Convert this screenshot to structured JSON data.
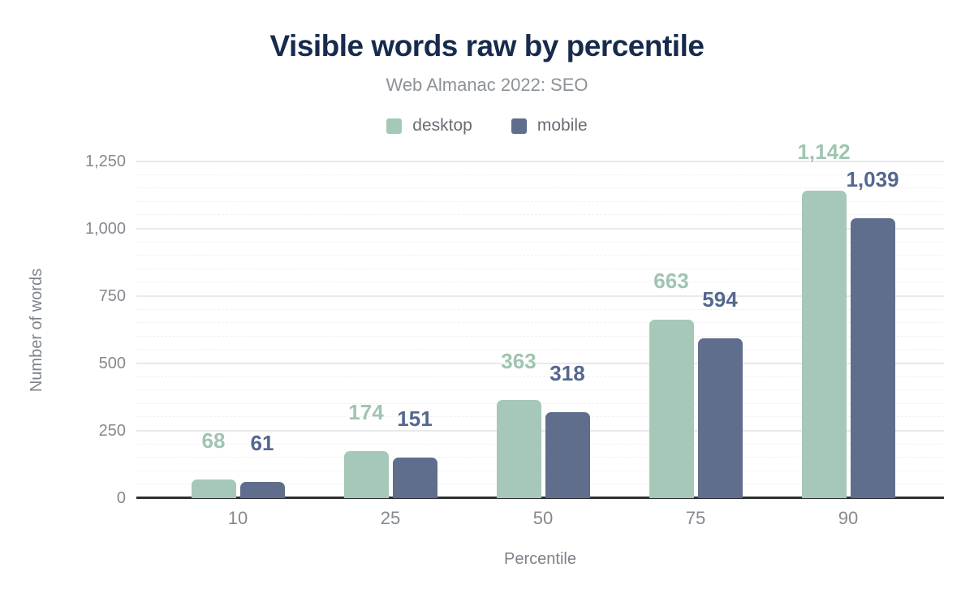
{
  "chart_data": {
    "type": "bar",
    "title": "Visible words raw by percentile",
    "subtitle": "Web Almanac 2022: SEO",
    "xlabel": "Percentile",
    "ylabel": "Number of words",
    "categories": [
      "10",
      "25",
      "50",
      "75",
      "90"
    ],
    "series": [
      {
        "name": "desktop",
        "color": "#a5c8b8",
        "label_color": "#9fc5b0",
        "values": [
          68,
          174,
          363,
          663,
          1142
        ],
        "labels": [
          "68",
          "174",
          "363",
          "663",
          "1,142"
        ]
      },
      {
        "name": "mobile",
        "color": "#5f6e8c",
        "label_color": "#54678f",
        "values": [
          61,
          151,
          318,
          594,
          1039
        ],
        "labels": [
          "61",
          "151",
          "318",
          "594",
          "1,039"
        ]
      }
    ],
    "ylim": [
      0,
      1250
    ],
    "ytick_values": [
      0,
      250,
      500,
      750,
      1000,
      1250
    ],
    "ytick_labels": [
      "0",
      "250",
      "500",
      "750",
      "1,000",
      "1,250"
    ],
    "minor_grid_interval": 50,
    "major_grid_interval": 250,
    "grid": true,
    "legend_position": "top",
    "colors": {
      "title": "#172b4d",
      "subtitle": "#8d9297",
      "axis_text": "#85898e",
      "axis_line": "#2d2f33",
      "major_grid": "#e8e9eb",
      "minor_grid": "#f0f0f2",
      "background": "#ffffff"
    }
  }
}
